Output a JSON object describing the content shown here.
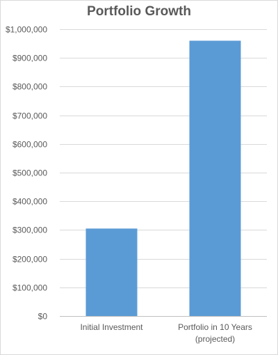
{
  "chart_data": {
    "type": "bar",
    "title": "Portfolio Growth",
    "categories": [
      "Initial Investment",
      "Portfolio in 10 Years (projected)"
    ],
    "category_lines": [
      [
        "Initial Investment"
      ],
      [
        "Portfolio in 10 Years",
        "(projected)"
      ]
    ],
    "values": [
      305000,
      960000
    ],
    "ylim": [
      0,
      1000000
    ],
    "y_ticks": [
      0,
      100000,
      200000,
      300000,
      400000,
      500000,
      600000,
      700000,
      800000,
      900000,
      1000000
    ],
    "y_tick_labels": [
      "$0",
      "$100,000",
      "$200,000",
      "$300,000",
      "$400,000",
      "$500,000",
      "$600,000",
      "$700,000",
      "$800,000",
      "$900,000",
      "$1,000,000"
    ],
    "xlabel": "",
    "ylabel": "",
    "grid": true,
    "bar_color": "#5b9bd5"
  }
}
